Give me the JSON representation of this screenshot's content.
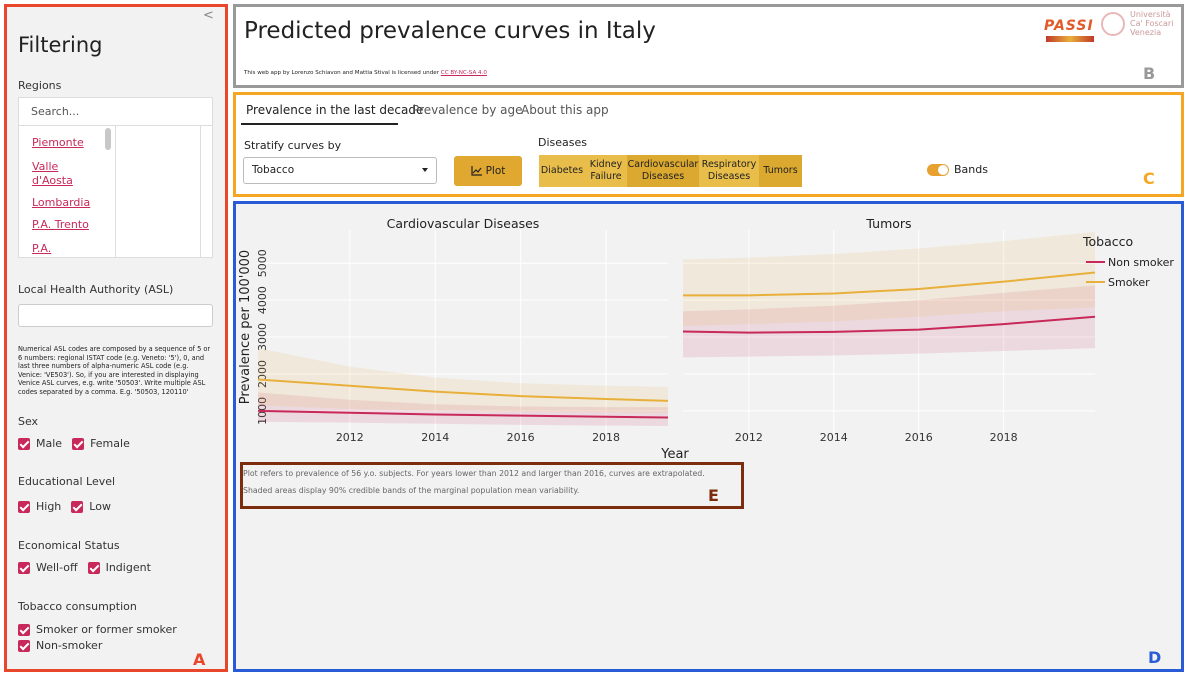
{
  "annotations": [
    "A",
    "B",
    "C",
    "D",
    "E"
  ],
  "sidebar": {
    "collapse": "<",
    "title": "Filtering",
    "regions": {
      "label": "Regions",
      "placeholder": "Search...",
      "items": [
        "Piemonte",
        "Valle d'Aosta",
        "Lombardia",
        "P.A. Trento",
        "P.A."
      ]
    },
    "asl": {
      "label": "Local Health Authority (ASL)",
      "help": "Numerical ASL codes are composed by a sequence of 5 or 6 numbers: regional ISTAT code (e.g. Veneto: '5'), 0, and last three numbers of alpha-numeric ASL code (e.g. Venice: 'VE503'). So, if you are interested in displaying Venice ASL curves, e.g. write '50503'. Write multiple ASL codes separated by a comma. E.g. '50503, 120110'"
    },
    "groups": [
      {
        "label": "Sex",
        "options": [
          "Male",
          "Female"
        ]
      },
      {
        "label": "Educational Level",
        "options": [
          "High",
          "Low"
        ]
      },
      {
        "label": "Economical Status",
        "options": [
          "Well-off",
          "Indigent"
        ]
      },
      {
        "label": "Tobacco consumption",
        "options": [
          "Smoker or former smoker",
          "Non-smoker"
        ]
      }
    ]
  },
  "header": {
    "title": "Predicted prevalence curves in Italy",
    "license": "This web app by Lorenzo Schiavon and Mattia Stival is licensed under",
    "license_link": "CC BY-NC-SA 4.0",
    "logos": [
      "PASSI",
      "Università",
      "Ca' Foscari",
      "Venezia"
    ]
  },
  "tabs": [
    "Prevalence in the last decade",
    "Prevalence by age",
    "About this app"
  ],
  "controls": {
    "stratify_label": "Stratify curves by",
    "stratify_value": "Tobacco",
    "plot_button": "Plot",
    "diseases_label": "Diseases",
    "diseases": [
      "Diabetes",
      "Kidney Failure",
      "Cardiovascular Diseases",
      "Respiratory Diseases",
      "Tumors"
    ],
    "bands_label": "Bands"
  },
  "plots": {
    "ylabel": "Prevalence per 100'000",
    "xlabel": "Year",
    "ylim": [
      400,
      5900
    ],
    "yticks": [
      1000,
      2000,
      3000,
      4000,
      5000
    ],
    "xticks": [
      2012,
      2014,
      2016,
      2018
    ],
    "grid": true,
    "legend_title": "Tobacco",
    "legend": "right",
    "panels": [
      {
        "title": "Cardiovascular Diseases",
        "xlim": [
          2009.85,
          2019.45
        ],
        "x": [
          2009.85,
          2012,
          2014,
          2016,
          2018,
          2019.45
        ],
        "series": [
          {
            "name": "Non smoker",
            "color": "#c8285a",
            "values": [
              1000,
              950,
              900,
              870,
              840,
              820
            ],
            "lower": [
              700,
              680,
              650,
              620,
              600,
              590
            ],
            "upper": [
              1500,
              1300,
              1180,
              1120,
              1100,
              1100
            ]
          },
          {
            "name": "Smoker",
            "color": "#e8b03a",
            "values": [
              1850,
              1680,
              1520,
              1400,
              1320,
              1270
            ],
            "lower": [
              1150,
              1050,
              1000,
              980,
              960,
              950
            ],
            "upper": [
              2700,
              2200,
              1900,
              1750,
              1680,
              1650
            ]
          }
        ]
      },
      {
        "title": "Tumors",
        "xlim": [
          2010.45,
          2020.15
        ],
        "x": [
          2010.45,
          2012,
          2014,
          2016,
          2018,
          2020.15
        ],
        "series": [
          {
            "name": "Non smoker",
            "color": "#c8285a",
            "values": [
              3150,
              3120,
              3140,
              3200,
              3350,
              3550
            ],
            "lower": [
              2450,
              2470,
              2500,
              2550,
              2620,
              2700
            ],
            "upper": [
              3700,
              3750,
              3850,
              4000,
              4200,
              4400
            ]
          },
          {
            "name": "Smoker",
            "color": "#e8b03a",
            "values": [
              4130,
              4130,
              4180,
              4300,
              4500,
              4750
            ],
            "lower": [
              3300,
              3350,
              3420,
              3550,
              3700,
              3800
            ],
            "upper": [
              5100,
              5150,
              5250,
              5400,
              5600,
              5850
            ]
          }
        ]
      }
    ]
  },
  "notes": [
    "Plot refers to prevalence of 56 y.o. subjects. For years lower than 2012 and larger than 2016, curves are extrapolated.",
    "Shaded areas display 90% credible bands of the marginal population mean variability."
  ]
}
